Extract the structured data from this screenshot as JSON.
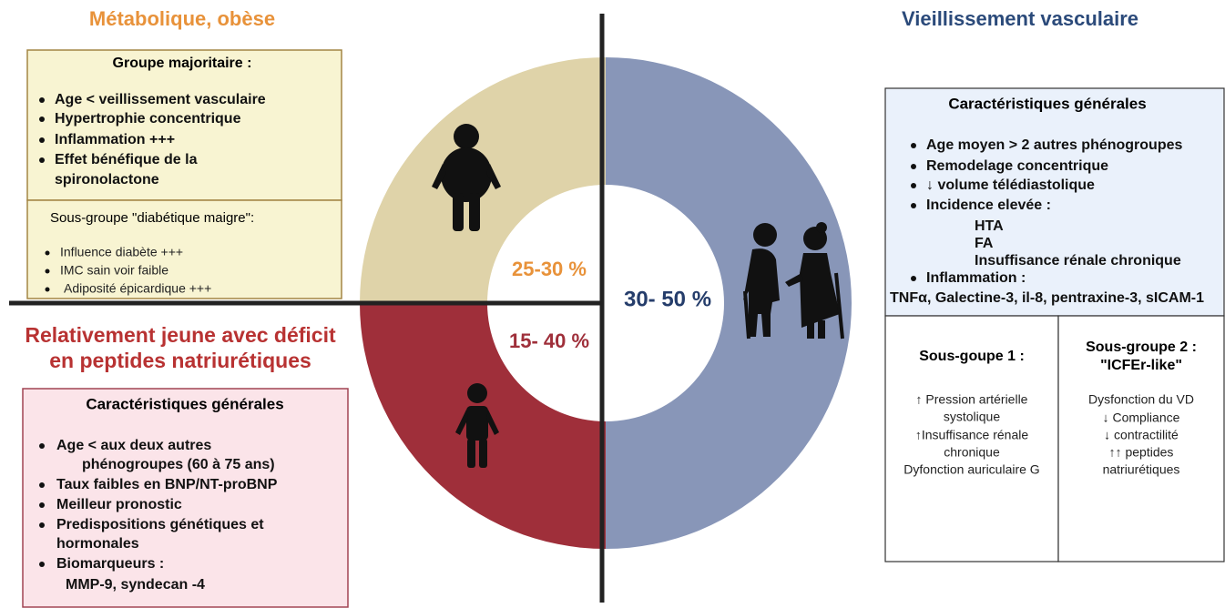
{
  "segments": [
    "25-30 %",
    "15- 40 %",
    "30- 50 %"
  ],
  "metabolic": {
    "title": "Métabolique, obèse",
    "main": {
      "title": "Groupe majoritaire :",
      "items": [
        "Age < veillissement vasculaire",
        "Hypertrophie concentrique",
        "Inflammation +++",
        "Effet bénéfique de la",
        "spironolactone"
      ]
    },
    "sub": {
      "title": "Sous-groupe \"diabétique maigre\":",
      "items": [
        "Influence diabète +++",
        "IMC sain voir faible",
        "Adiposité épicardique +++"
      ]
    }
  },
  "young": {
    "title": [
      "Relativement jeune avec déficit",
      "en peptides natriurétiques"
    ],
    "box": {
      "title": "Caractéristiques générales",
      "items": [
        "Age < aux deux autres",
        "phénogroupes  (60 à 75 ans)",
        "Taux faibles en BNP/NT-proBNP",
        "Meilleur pronostic",
        "Predispositions génétiques et",
        "hormonales",
        "Biomarqueurs :",
        "MMP-9, syndecan -4"
      ]
    }
  },
  "aging": {
    "title": "Vieillissement vasculaire",
    "box": {
      "title": "Caractéristiques générales",
      "items": [
        "Age moyen > 2 autres phénogroupes",
        "Remodelage concentrique",
        "↓  volume télédiastolique",
        "Incidence elevée :",
        "HTA",
        "FA",
        "Insuffisance rénale chronique",
        "Inflammation :",
        "TNFα, Galectine-3, il-8, pentraxine-3, sICAM-1"
      ]
    },
    "sub1": {
      "title": [
        "Sous-goupe 1 :"
      ],
      "items": [
        "↑ Pression  artérielle",
        "systolique",
        "↑Insuffisance rénale",
        "chronique",
        "Dyfonction auriculaire G"
      ]
    },
    "sub2": {
      "title": [
        "Sous-groupe 2 :",
        "\"ICFEr-like\""
      ],
      "items": [
        "Dysfonction du VD",
        "↓ Compliance",
        "↓ contractilité",
        "↑↑ peptides",
        "natriurétiques"
      ]
    }
  }
}
